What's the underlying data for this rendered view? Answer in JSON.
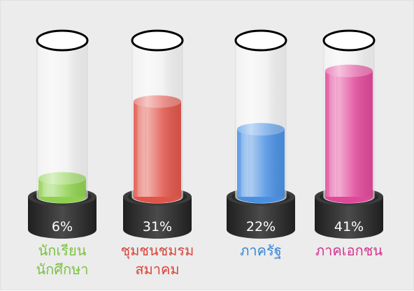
{
  "chart_data": {
    "type": "bar",
    "categories": [
      "นักเรียน\nนักศึกษา",
      "ชุมชนชมรม\nสมาคม",
      "ภาครัฐ",
      "ภาคเอกชน"
    ],
    "values": [
      6,
      31,
      22,
      41
    ],
    "value_labels": [
      "6%",
      "31%",
      "22%",
      "41%"
    ],
    "colors": [
      "#8fd14f",
      "#e0544a",
      "#4a90e2",
      "#e0489a"
    ],
    "label_colors": [
      "#7cc242",
      "#d9443c",
      "#3a86d8",
      "#d6338f"
    ],
    "title": "",
    "xlabel": "",
    "ylabel": "",
    "ylim": [
      0,
      60
    ],
    "grid": false,
    "legend": "none"
  }
}
